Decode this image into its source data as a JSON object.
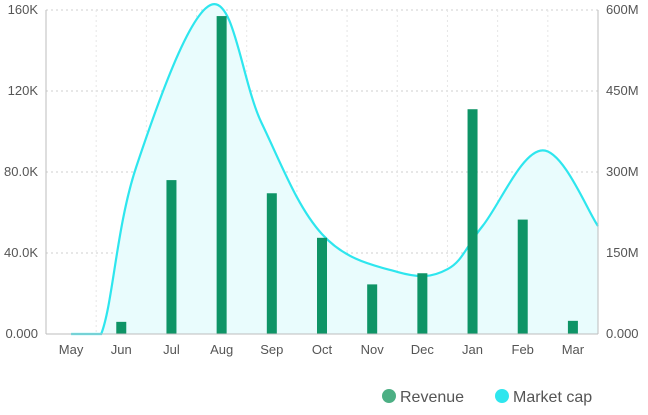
{
  "chart_data": {
    "type": "bar",
    "categories": [
      "May",
      "Jun",
      "Jul",
      "Aug",
      "Sep",
      "Oct",
      "Nov",
      "Dec",
      "Jan",
      "Feb",
      "Mar"
    ],
    "series": [
      {
        "name": "Revenue",
        "type": "bar",
        "axis": "left",
        "color": "#0e9466",
        "values": [
          0,
          6000,
          76000,
          157000,
          69500,
          47500,
          24500,
          30000,
          111000,
          56500,
          6500
        ]
      },
      {
        "name": "Market cap",
        "type": "area",
        "axis": "right",
        "color": "#2ee6ee",
        "fill": "#e9fcfd",
        "curve_x": [
          "May",
          "Jun",
          "Jul",
          "Jul-Aug",
          "Aug",
          "Sep",
          "Oct",
          "Nov",
          "Dec",
          "Jan",
          "Feb",
          "Feb-Mar",
          "Mar"
        ],
        "points": [
          {
            "x": 0,
            "y": 0
          },
          {
            "x": 0.6,
            "y": 0
          },
          {
            "x": 1.3,
            "y": 310000000
          },
          {
            "x": 2.8,
            "y": 610000000
          },
          {
            "x": 3.8,
            "y": 390000000
          },
          {
            "x": 5.0,
            "y": 185000000
          },
          {
            "x": 6.5,
            "y": 115000000
          },
          {
            "x": 7.5,
            "y": 120000000
          },
          {
            "x": 8.2,
            "y": 200000000
          },
          {
            "x": 9.4,
            "y": 340000000
          },
          {
            "x": 10.5,
            "y": 200000000
          }
        ]
      }
    ],
    "y_left": {
      "min": 0,
      "max": 160000,
      "ticks": [
        0,
        40000,
        80000,
        120000,
        160000
      ],
      "tick_labels": [
        "0.000",
        "40.0K",
        "80.0K",
        "120K",
        "160K"
      ]
    },
    "y_right": {
      "min": 0,
      "max": 600000000,
      "ticks": [
        0,
        150000000,
        300000000,
        450000000,
        600000000
      ],
      "tick_labels": [
        "0.000",
        "150M",
        "300M",
        "450M",
        "600M"
      ]
    },
    "grid": true,
    "legend_position": "bottom-right",
    "title": "",
    "xlabel": "",
    "ylabel": ""
  }
}
